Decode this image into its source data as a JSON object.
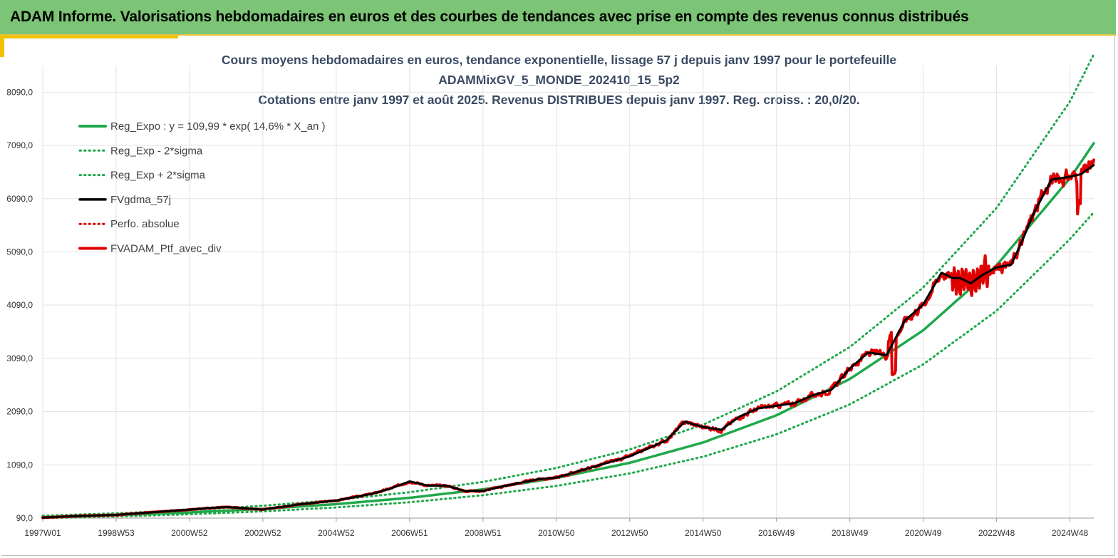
{
  "banner": {
    "title": "ADAM Informe. Valorisations hebdomadaires en euros et des courbes de tendances avec prise en compte des revenus connus distribués"
  },
  "colors": {
    "banner_bg": "#7cc576",
    "accent": "#f2c200",
    "title_text": "#3a4a63",
    "trend": "#1fa84a",
    "trend_band": "#1fa84a",
    "smoothed": "#000000",
    "portfolio": "#e00000"
  },
  "chart_data": {
    "type": "line",
    "title": "Cours moyens hebdomadaires  en euros, tendance exponentielle, lissage 57 j depuis janv 1997 pour le portefeuille",
    "subtitle": "ADAMMixGV_5_MONDE_202410_15_5p2",
    "subtitle2": "Cotations  entre janv 1997 et août 2025. Revenus DISTRIBUES depuis janv 1997. Reg. croiss. : 20,0/20.",
    "xlabel": "",
    "ylabel": "",
    "grid": true,
    "legend_position": "top-left",
    "ylim": [
      90,
      8590
    ],
    "y_ticks": [
      "90,0",
      "1090,0",
      "2090,0",
      "3090,0",
      "4090,0",
      "5090,0",
      "6090,0",
      "7090,0",
      "8090,0"
    ],
    "y_tick_values": [
      90,
      1090,
      2090,
      3090,
      4090,
      5090,
      6090,
      7090,
      8090
    ],
    "x_range_years": [
      1997.0,
      2025.65
    ],
    "x_ticks": [
      "1997W01",
      "1998W53",
      "2000W52",
      "2002W52",
      "2004W52",
      "2006W51",
      "2008W51",
      "2010W50",
      "2012W50",
      "2014W50",
      "2016W49",
      "2018W49",
      "2020W49",
      "2022W48",
      "2024W48"
    ],
    "x_tick_years": [
      1997.0,
      1999.0,
      2001.0,
      2003.0,
      2005.0,
      2007.0,
      2009.0,
      2011.0,
      2013.0,
      2015.0,
      2017.0,
      2019.0,
      2021.0,
      2023.0,
      2025.0
    ],
    "series": [
      {
        "name": "Reg_Expo : y = 109,99 * exp( 14,6% *  X_an )",
        "style": "solid",
        "color": "#1fa84a",
        "width": 3.5,
        "x": [
          1997,
          1999,
          2001,
          2003,
          2005,
          2007,
          2009,
          2011,
          2013,
          2015,
          2017,
          2019,
          2021,
          2023,
          2025,
          2025.65
        ],
        "values": [
          110,
          147,
          197,
          263,
          352,
          471,
          630,
          843,
          1128,
          1510,
          2020,
          2702,
          3616,
          4838,
          6473,
          7131
        ]
      },
      {
        "name": "Reg_Exp - 2*sigma",
        "style": "dotted",
        "color": "#1fa84a",
        "width": 3,
        "x": [
          1997,
          1999,
          2001,
          2003,
          2005,
          2007,
          2009,
          2011,
          2013,
          2015,
          2017,
          2019,
          2021,
          2023,
          2025,
          2025.65
        ],
        "values": [
          90,
          121,
          162,
          216,
          290,
          388,
          519,
          694,
          929,
          1243,
          1663,
          2225,
          2977,
          3983,
          5329,
          5835
        ]
      },
      {
        "name": "Reg_Exp + 2*sigma",
        "style": "dotted",
        "color": "#1fa84a",
        "width": 3,
        "x": [
          1997,
          1999,
          2001,
          2003,
          2005,
          2007,
          2009,
          2011,
          2013,
          2015,
          2017,
          2019,
          2021,
          2023,
          2025,
          2025.65
        ],
        "values": [
          134,
          180,
          241,
          322,
          430,
          576,
          770,
          1031,
          1379,
          1845,
          2469,
          3303,
          4420,
          5914,
          7913,
          8800
        ]
      },
      {
        "name": "FVgdma_57j",
        "style": "solid",
        "color": "#000000",
        "width": 3,
        "x": [
          1997,
          1998,
          1999,
          2000,
          2001,
          2002,
          2003,
          2004,
          2005,
          2006,
          2006.5,
          2007,
          2007.5,
          2008,
          2008.5,
          2009,
          2009.5,
          2010,
          2010.5,
          2011,
          2012,
          2013,
          2014,
          2014.5,
          2015,
          2015.5,
          2016,
          2016.5,
          2017,
          2017.5,
          2018,
          2018.5,
          2019,
          2019.5,
          2020,
          2020.5,
          2021,
          2021.5,
          2021.8,
          2022,
          2022.3,
          2022.6,
          2023,
          2023.4,
          2023.7,
          2024,
          2024.5,
          2025,
          2025.3,
          2025.65
        ],
        "values": [
          100,
          130,
          150,
          200,
          250,
          300,
          250,
          350,
          420,
          550,
          650,
          780,
          700,
          700,
          600,
          600,
          680,
          750,
          820,
          850,
          1050,
          1250,
          1550,
          1900,
          1800,
          1750,
          2000,
          2150,
          2200,
          2250,
          2400,
          2500,
          2900,
          3200,
          3150,
          3800,
          4100,
          4700,
          4600,
          4600,
          4500,
          4650,
          4800,
          4850,
          5300,
          5800,
          6450,
          6500,
          6550,
          6720
        ]
      },
      {
        "name": "Perfo. absolue",
        "style": "dotted",
        "color": "#e00000",
        "width": 3,
        "x": [],
        "values": []
      },
      {
        "name": "FVADAM_Ptf_avec_div",
        "style": "solid",
        "color": "#e00000",
        "width": 4,
        "x": [
          1997,
          1998,
          1999,
          2000,
          2001,
          2002,
          2003,
          2004,
          2005,
          2006,
          2006.5,
          2007,
          2007.5,
          2008,
          2008.5,
          2009,
          2009.5,
          2010,
          2010.5,
          2011,
          2012,
          2013,
          2014,
          2014.5,
          2015,
          2015.5,
          2016,
          2016.5,
          2017,
          2017.5,
          2018,
          2018.5,
          2019,
          2019.5,
          2020,
          2020.5,
          2021,
          2021.5,
          2021.8,
          2022,
          2022.3,
          2022.6,
          2023,
          2023.4,
          2023.7,
          2024,
          2024.5,
          2025,
          2025.3,
          2025.65
        ],
        "values": [
          100,
          130,
          150,
          200,
          250,
          300,
          250,
          350,
          420,
          550,
          650,
          780,
          700,
          700,
          600,
          600,
          680,
          750,
          820,
          850,
          1050,
          1250,
          1550,
          1900,
          1800,
          1750,
          2000,
          2150,
          2200,
          2250,
          2400,
          2500,
          2900,
          3200,
          3150,
          3800,
          4100,
          4700,
          4600,
          4600,
          4500,
          4650,
          4800,
          4850,
          5300,
          5800,
          6450,
          6500,
          6550,
          6720
        ]
      }
    ]
  }
}
